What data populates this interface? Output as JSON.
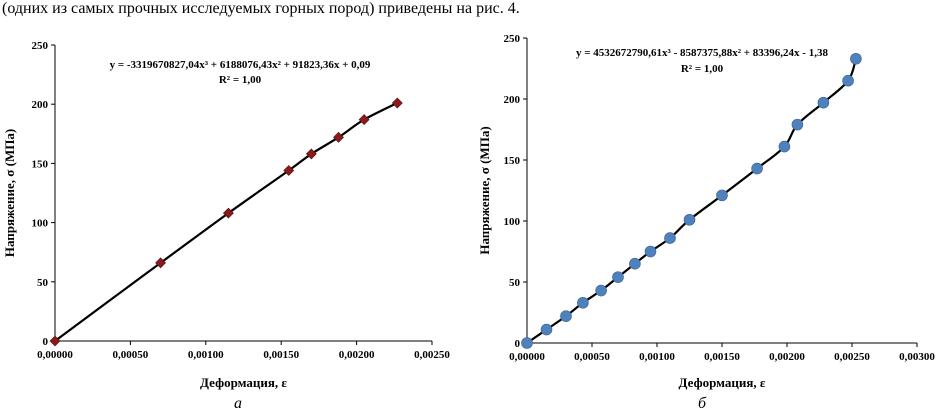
{
  "document": {
    "intro_text": "(одних из самых прочных исследуемых горных пород) приведены на рис. 4."
  },
  "chart_data": [
    {
      "type": "scatter",
      "caption": "а",
      "xlabel": "Деформация, ε",
      "ylabel": "Напряжение, σ (МПа)",
      "xlim": [
        0,
        0.0025
      ],
      "ylim": [
        0,
        250
      ],
      "x_ticks": [
        "0,00000",
        "0,00050",
        "0,00100",
        "0,00150",
        "0,00200",
        "0,00250"
      ],
      "y_ticks": [
        "0",
        "50",
        "100",
        "150",
        "200",
        "250"
      ],
      "equation": "y = -3319670827,04x³ + 6188076,43x² + 91823,36x + 0,09",
      "r_squared": "R² = 1,00",
      "marker": "diamond",
      "marker_color": "#8b1a1a",
      "trendline": "polynomial",
      "grid": false,
      "points": [
        {
          "x": 0.0,
          "y": 0
        },
        {
          "x": 0.0007,
          "y": 66
        },
        {
          "x": 0.00115,
          "y": 108
        },
        {
          "x": 0.00155,
          "y": 144
        },
        {
          "x": 0.0017,
          "y": 158
        },
        {
          "x": 0.00188,
          "y": 172
        },
        {
          "x": 0.00205,
          "y": 187
        },
        {
          "x": 0.00227,
          "y": 201
        }
      ]
    },
    {
      "type": "scatter",
      "caption": "б",
      "xlabel": "Деформация, ε",
      "ylabel": "Напряжение, σ (МПа)",
      "xlim": [
        0,
        0.003
      ],
      "ylim": [
        0,
        250
      ],
      "x_ticks": [
        "0,00000",
        "0,00050",
        "0,00100",
        "0,00150",
        "0,00200",
        "0,00250",
        "0,00300"
      ],
      "y_ticks": [
        "0",
        "50",
        "100",
        "150",
        "200",
        "250"
      ],
      "equation": "y = 4532672790,61x³ - 8587375,88x² + 83396,24x - 1,38",
      "r_squared": "R² = 1,00",
      "marker": "circle",
      "marker_color": "#4f81bd",
      "trendline": "polynomial",
      "grid": false,
      "points": [
        {
          "x": 0.0,
          "y": 0
        },
        {
          "x": 0.00015,
          "y": 11
        },
        {
          "x": 0.0003,
          "y": 22
        },
        {
          "x": 0.00043,
          "y": 33
        },
        {
          "x": 0.00057,
          "y": 43
        },
        {
          "x": 0.0007,
          "y": 54
        },
        {
          "x": 0.00083,
          "y": 65
        },
        {
          "x": 0.00095,
          "y": 75
        },
        {
          "x": 0.0011,
          "y": 86
        },
        {
          "x": 0.00125,
          "y": 101
        },
        {
          "x": 0.0015,
          "y": 121
        },
        {
          "x": 0.00177,
          "y": 143
        },
        {
          "x": 0.00198,
          "y": 161
        },
        {
          "x": 0.00208,
          "y": 179
        },
        {
          "x": 0.00228,
          "y": 197
        },
        {
          "x": 0.00247,
          "y": 215
        },
        {
          "x": 0.00253,
          "y": 233
        }
      ]
    }
  ]
}
